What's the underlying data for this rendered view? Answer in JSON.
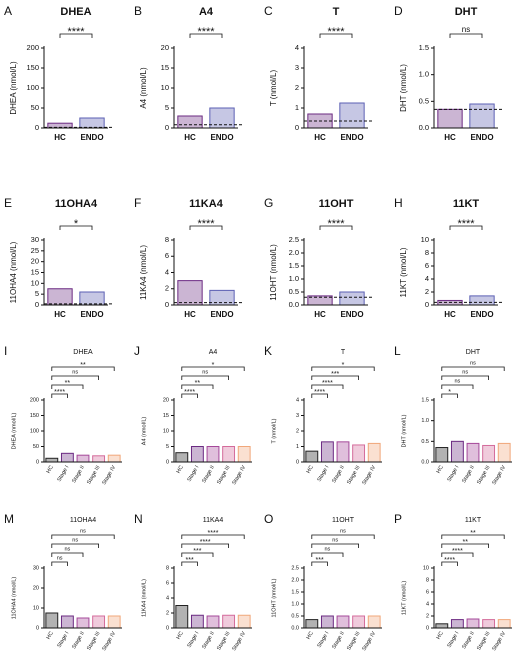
{
  "chart_data": [
    {
      "type": "bar",
      "panel": "A",
      "title": "DHEA",
      "y_label": "DHEA (nmol/L)",
      "categories": [
        "HC",
        "ENDO"
      ],
      "values": [
        12,
        25
      ],
      "colors": [
        "#6b2a82",
        "#5b5fb3"
      ],
      "ylim": [
        0,
        200
      ],
      "yticks": [
        0,
        50,
        100,
        150,
        200
      ],
      "reference_line": 1.5,
      "brackets": [
        {
          "from": 0,
          "to": 1,
          "label": "****"
        }
      ]
    },
    {
      "type": "bar",
      "panel": "B",
      "title": "A4",
      "y_label": "A4 (nmol/L)",
      "categories": [
        "HC",
        "ENDO"
      ],
      "values": [
        3,
        5
      ],
      "colors": [
        "#6b2a82",
        "#5b5fb3"
      ],
      "ylim": [
        0,
        20
      ],
      "yticks": [
        0,
        5,
        10,
        15,
        20
      ],
      "reference_line": 0.8,
      "brackets": [
        {
          "from": 0,
          "to": 1,
          "label": "****"
        }
      ]
    },
    {
      "type": "bar",
      "panel": "C",
      "title": "T",
      "y_label": "T (nmol/L)",
      "categories": [
        "HC",
        "ENDO"
      ],
      "values": [
        0.7,
        1.25
      ],
      "colors": [
        "#6b2a82",
        "#5b5fb3"
      ],
      "ylim": [
        0,
        4
      ],
      "yticks": [
        0,
        1,
        2,
        3,
        4
      ],
      "reference_line": 0.35,
      "brackets": [
        {
          "from": 0,
          "to": 1,
          "label": "****"
        }
      ]
    },
    {
      "type": "bar",
      "panel": "D",
      "title": "DHT",
      "y_label": "DHT (nmol/L)",
      "categories": [
        "HC",
        "ENDO"
      ],
      "values": [
        0.35,
        0.45
      ],
      "colors": [
        "#6b2a82",
        "#5b5fb3"
      ],
      "ylim": [
        0,
        1.5
      ],
      "yticks": [
        {
          "value": 0,
          "label": "0.0"
        },
        0.5,
        {
          "value": 1,
          "label": "1.0"
        },
        1.5
      ],
      "reference_line": 0.35,
      "brackets": [
        {
          "from": 0,
          "to": 1,
          "label": "ns"
        }
      ]
    },
    {
      "type": "bar",
      "panel": "E",
      "title": "11OHA4",
      "y_label": "11OHA4 (nmol/L)",
      "categories": [
        "HC",
        "ENDO"
      ],
      "values": [
        7.5,
        6
      ],
      "colors": [
        "#6b2a82",
        "#5b5fb3"
      ],
      "ylim": [
        0,
        30
      ],
      "yticks": [
        0,
        5,
        10,
        15,
        20,
        25,
        30
      ],
      "reference_line": 0.5,
      "brackets": [
        {
          "from": 0,
          "to": 1,
          "label": "*"
        }
      ]
    },
    {
      "type": "bar",
      "panel": "F",
      "title": "11KA4",
      "y_label": "11KA4 (nmol/L)",
      "categories": [
        "HC",
        "ENDO"
      ],
      "values": [
        3,
        1.8
      ],
      "colors": [
        "#6b2a82",
        "#5b5fb3"
      ],
      "ylim": [
        0,
        8
      ],
      "yticks": [
        0,
        2,
        4,
        6,
        8
      ],
      "reference_line": 0.3,
      "brackets": [
        {
          "from": 0,
          "to": 1,
          "label": "****"
        }
      ]
    },
    {
      "type": "bar",
      "panel": "G",
      "title": "11OHT",
      "y_label": "11OHT (nmol/L)",
      "categories": [
        "HC",
        "ENDO"
      ],
      "values": [
        0.35,
        0.5
      ],
      "colors": [
        "#6b2a82",
        "#5b5fb3"
      ],
      "ylim": [
        0,
        2.5
      ],
      "yticks": [
        {
          "value": 0,
          "label": "0.0"
        },
        0.5,
        {
          "value": 1,
          "label": "1.0"
        },
        1.5,
        {
          "value": 2,
          "label": "2.0"
        },
        2.5
      ],
      "reference_line": 0.3,
      "brackets": [
        {
          "from": 0,
          "to": 1,
          "label": "****"
        }
      ]
    },
    {
      "type": "bar",
      "panel": "H",
      "title": "11KT",
      "y_label": "11KT (nmol/L)",
      "categories": [
        "HC",
        "ENDO"
      ],
      "values": [
        0.7,
        1.4
      ],
      "colors": [
        "#6b2a82",
        "#5b5fb3"
      ],
      "ylim": [
        0,
        10
      ],
      "yticks": [
        0,
        2,
        4,
        6,
        8,
        10
      ],
      "reference_line": 0.4,
      "brackets": [
        {
          "from": 0,
          "to": 1,
          "label": "****"
        }
      ]
    },
    {
      "type": "bar",
      "panel": "I",
      "title": "DHEA",
      "y_label": "DHEA (nmol/L)",
      "categories": [
        "HC",
        "Stage I",
        "Stage II",
        "Stage III",
        "Stage IV"
      ],
      "values": [
        12,
        28,
        22,
        20,
        22
      ],
      "colors": [
        "#222222",
        "#6b2a82",
        "#a5489a",
        "#d46b9b",
        "#f0a77a"
      ],
      "ylim": [
        0,
        200
      ],
      "yticks": [
        0,
        50,
        100,
        150,
        200
      ],
      "brackets": [
        {
          "from": 0,
          "to": 1,
          "label": "****"
        },
        {
          "from": 0,
          "to": 2,
          "label": "**"
        },
        {
          "from": 0,
          "to": 3,
          "label": "ns"
        },
        {
          "from": 0,
          "to": 4,
          "label": "**"
        }
      ]
    },
    {
      "type": "bar",
      "panel": "J",
      "title": "A4",
      "y_label": "A4 (nmol/L)",
      "categories": [
        "HC",
        "Stage I",
        "Stage II",
        "Stage III",
        "Stage IV"
      ],
      "values": [
        3,
        5,
        5,
        5,
        5
      ],
      "colors": [
        "#222222",
        "#6b2a82",
        "#a5489a",
        "#d46b9b",
        "#f0a77a"
      ],
      "ylim": [
        0,
        20
      ],
      "yticks": [
        0,
        5,
        10,
        15,
        20
      ],
      "brackets": [
        {
          "from": 0,
          "to": 1,
          "label": "****"
        },
        {
          "from": 0,
          "to": 2,
          "label": "**"
        },
        {
          "from": 0,
          "to": 3,
          "label": "ns"
        },
        {
          "from": 0,
          "to": 4,
          "label": "*"
        }
      ]
    },
    {
      "type": "bar",
      "panel": "K",
      "title": "T",
      "y_label": "T (nmol/L)",
      "categories": [
        "HC",
        "Stage I",
        "Stage II",
        "Stage III",
        "Stage IV"
      ],
      "values": [
        0.7,
        1.3,
        1.3,
        1.1,
        1.2
      ],
      "colors": [
        "#222222",
        "#6b2a82",
        "#a5489a",
        "#d46b9b",
        "#f0a77a"
      ],
      "ylim": [
        0,
        4
      ],
      "yticks": [
        0,
        1,
        2,
        3,
        4
      ],
      "brackets": [
        {
          "from": 0,
          "to": 1,
          "label": "****"
        },
        {
          "from": 0,
          "to": 2,
          "label": "****"
        },
        {
          "from": 0,
          "to": 3,
          "label": "***"
        },
        {
          "from": 0,
          "to": 4,
          "label": "*"
        }
      ]
    },
    {
      "type": "bar",
      "panel": "L",
      "title": "DHT",
      "y_label": "DHT (nmol/L)",
      "categories": [
        "HC",
        "Stage I",
        "Stage II",
        "Stage III",
        "Stage IV"
      ],
      "values": [
        0.35,
        0.5,
        0.45,
        0.4,
        0.45
      ],
      "colors": [
        "#222222",
        "#6b2a82",
        "#a5489a",
        "#d46b9b",
        "#f0a77a"
      ],
      "ylim": [
        0,
        1.5
      ],
      "yticks": [
        {
          "value": 0,
          "label": "0.0"
        },
        0.5,
        {
          "value": 1,
          "label": "1.0"
        },
        1.5
      ],
      "brackets": [
        {
          "from": 0,
          "to": 1,
          "label": "*"
        },
        {
          "from": 0,
          "to": 2,
          "label": "ns"
        },
        {
          "from": 0,
          "to": 3,
          "label": "ns"
        },
        {
          "from": 0,
          "to": 4,
          "label": "ns"
        }
      ]
    },
    {
      "type": "bar",
      "panel": "M",
      "title": "11OHA4",
      "y_label": "11OHA4 (nmol/L)",
      "categories": [
        "HC",
        "Stage I",
        "Stage II",
        "Stage III",
        "Stage IV"
      ],
      "values": [
        7.5,
        6,
        5,
        6,
        6
      ],
      "colors": [
        "#222222",
        "#6b2a82",
        "#a5489a",
        "#d46b9b",
        "#f0a77a"
      ],
      "ylim": [
        0,
        30
      ],
      "yticks": [
        0,
        10,
        20,
        30
      ],
      "brackets": [
        {
          "from": 0,
          "to": 1,
          "label": "ns"
        },
        {
          "from": 0,
          "to": 2,
          "label": "ns"
        },
        {
          "from": 0,
          "to": 3,
          "label": "ns"
        },
        {
          "from": 0,
          "to": 4,
          "label": "ns"
        }
      ]
    },
    {
      "type": "bar",
      "panel": "N",
      "title": "11KA4",
      "y_label": "11KA4 (nmol/L)",
      "categories": [
        "HC",
        "Stage I",
        "Stage II",
        "Stage III",
        "Stage IV"
      ],
      "values": [
        3,
        1.7,
        1.6,
        1.7,
        1.7
      ],
      "colors": [
        "#222222",
        "#6b2a82",
        "#a5489a",
        "#d46b9b",
        "#f0a77a"
      ],
      "ylim": [
        0,
        8
      ],
      "yticks": [
        0,
        2,
        4,
        6,
        8
      ],
      "brackets": [
        {
          "from": 0,
          "to": 1,
          "label": "***"
        },
        {
          "from": 0,
          "to": 2,
          "label": "***"
        },
        {
          "from": 0,
          "to": 3,
          "label": "****"
        },
        {
          "from": 0,
          "to": 4,
          "label": "****"
        }
      ]
    },
    {
      "type": "bar",
      "panel": "O",
      "title": "11OHT",
      "y_label": "11OHT (nmol/L)",
      "categories": [
        "HC",
        "Stage I",
        "Stage II",
        "Stage III",
        "Stage IV"
      ],
      "values": [
        0.35,
        0.5,
        0.5,
        0.5,
        0.5
      ],
      "colors": [
        "#222222",
        "#6b2a82",
        "#a5489a",
        "#d46b9b",
        "#f0a77a"
      ],
      "ylim": [
        0,
        2.5
      ],
      "yticks": [
        {
          "value": 0,
          "label": "0.0"
        },
        0.5,
        {
          "value": 1,
          "label": "1.0"
        },
        1.5,
        {
          "value": 2,
          "label": "2.0"
        },
        2.5
      ],
      "brackets": [
        {
          "from": 0,
          "to": 1,
          "label": "***"
        },
        {
          "from": 0,
          "to": 2,
          "label": "ns"
        },
        {
          "from": 0,
          "to": 3,
          "label": "ns"
        },
        {
          "from": 0,
          "to": 4,
          "label": "ns"
        }
      ]
    },
    {
      "type": "bar",
      "panel": "P",
      "title": "11KT",
      "y_label": "11KT (nmol/L)",
      "categories": [
        "HC",
        "Stage I",
        "Stage II",
        "Stage III",
        "Stage IV"
      ],
      "values": [
        0.7,
        1.4,
        1.5,
        1.4,
        1.4
      ],
      "colors": [
        "#222222",
        "#6b2a82",
        "#a5489a",
        "#d46b9b",
        "#f0a77a"
      ],
      "ylim": [
        0,
        10
      ],
      "yticks": [
        0,
        2,
        4,
        6,
        8,
        10
      ],
      "brackets": [
        {
          "from": 0,
          "to": 1,
          "label": "****"
        },
        {
          "from": 0,
          "to": 2,
          "label": "****"
        },
        {
          "from": 0,
          "to": 3,
          "label": "**"
        },
        {
          "from": 0,
          "to": 4,
          "label": "**"
        }
      ]
    }
  ]
}
